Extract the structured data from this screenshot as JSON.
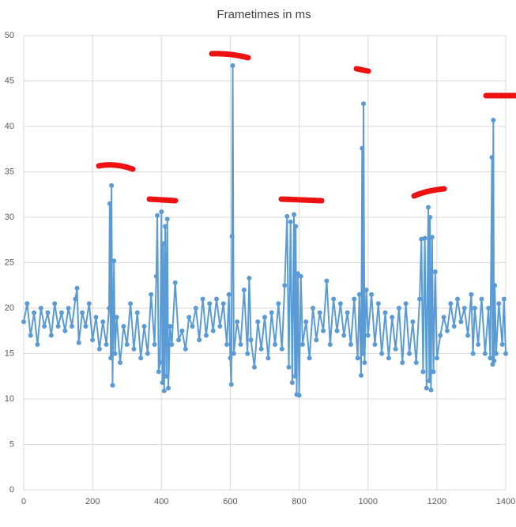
{
  "chart_data": {
    "type": "line",
    "title": "Frametimes in ms",
    "x": [
      0,
      10,
      20,
      30,
      40,
      50,
      60,
      70,
      80,
      90,
      100,
      110,
      120,
      130,
      140,
      150,
      155,
      160,
      170,
      180,
      190,
      200,
      210,
      220,
      230,
      240,
      248,
      250,
      253,
      255,
      258,
      262,
      265,
      270,
      280,
      290,
      300,
      310,
      320,
      330,
      340,
      350,
      360,
      370,
      380,
      385,
      388,
      392,
      396,
      400,
      403,
      405,
      408,
      411,
      414,
      417,
      420,
      425,
      430,
      440,
      450,
      460,
      470,
      480,
      490,
      500,
      510,
      520,
      530,
      540,
      550,
      560,
      570,
      580,
      590,
      596,
      600,
      603,
      605,
      607,
      610,
      620,
      630,
      640,
      650,
      655,
      660,
      670,
      680,
      690,
      700,
      710,
      720,
      730,
      740,
      750,
      758,
      765,
      770,
      775,
      780,
      785,
      788,
      790,
      793,
      796,
      800,
      805,
      810,
      820,
      830,
      840,
      850,
      860,
      870,
      880,
      890,
      900,
      910,
      920,
      930,
      940,
      950,
      960,
      970,
      975,
      980,
      983,
      985,
      987,
      990,
      995,
      1000,
      1010,
      1020,
      1030,
      1040,
      1050,
      1060,
      1070,
      1080,
      1090,
      1100,
      1110,
      1120,
      1130,
      1140,
      1150,
      1155,
      1160,
      1165,
      1170,
      1175,
      1178,
      1180,
      1183,
      1186,
      1190,
      1195,
      1200,
      1210,
      1220,
      1230,
      1240,
      1250,
      1260,
      1270,
      1280,
      1290,
      1300,
      1305,
      1310,
      1320,
      1330,
      1340,
      1350,
      1355,
      1360,
      1362,
      1364,
      1366,
      1368,
      1372,
      1380,
      1390,
      1395,
      1400
    ],
    "series": [
      {
        "color": "#5b9bd5",
        "values": [
          18.5,
          20.5,
          17,
          19.5,
          16,
          20,
          18,
          19.5,
          17,
          20.5,
          18,
          19.5,
          17.5,
          20,
          18,
          21,
          22.2,
          16.2,
          19.5,
          18,
          20.5,
          16.5,
          19,
          15.5,
          18.5,
          16,
          20,
          31.5,
          14.5,
          33.5,
          11.5,
          25.2,
          15,
          19,
          14,
          18,
          16,
          20.5,
          15.5,
          19.5,
          14.5,
          18,
          15,
          21.5,
          16,
          23.5,
          30.2,
          13,
          14,
          30.6,
          11.8,
          27.1,
          10.9,
          29,
          12.5,
          29.8,
          11.2,
          18,
          16,
          22.8,
          16.5,
          17.5,
          15.5,
          19,
          18,
          20,
          16.5,
          21,
          17,
          20.5,
          17.5,
          21,
          18,
          20.5,
          16,
          21.5,
          14.5,
          11.6,
          27.9,
          46.7,
          15,
          18.5,
          16,
          22,
          15,
          23.3,
          16.5,
          13.5,
          18.5,
          15.5,
          19,
          14.5,
          19.5,
          16,
          20.5,
          15.5,
          22.5,
          30.1,
          13.5,
          29.5,
          11.8,
          30.3,
          12.5,
          29,
          10.5,
          23.8,
          10.4,
          23.5,
          16,
          18.5,
          14.5,
          20,
          16.5,
          19.5,
          17.5,
          23,
          16,
          21,
          17.5,
          20.5,
          17,
          19.5,
          16,
          21,
          14.5,
          21.5,
          12.6,
          37.6,
          15,
          42.5,
          14,
          22,
          17,
          21.5,
          16,
          20.5,
          15,
          19.5,
          14.5,
          19,
          15.5,
          20,
          14,
          20.5,
          15,
          18.5,
          14,
          21,
          27.6,
          13,
          27.7,
          11.2,
          31.1,
          12,
          30,
          11,
          27.8,
          13,
          24,
          14.5,
          17,
          19,
          17.5,
          20.5,
          18,
          21,
          18.5,
          20,
          17,
          21.5,
          15,
          20,
          16,
          21,
          15,
          20,
          14.5,
          36.6,
          13.8,
          40.7,
          14.2,
          22.5,
          15,
          20.5,
          16,
          21,
          15
        ]
      }
    ],
    "xlim": [
      0,
      1400
    ],
    "xticks": [
      0,
      200,
      400,
      600,
      800,
      1000,
      1200,
      1400
    ],
    "ylim": [
      0,
      50
    ],
    "yticks": [
      0,
      5,
      10,
      15,
      20,
      25,
      30,
      35,
      40,
      45,
      50
    ],
    "grid": true
  }
}
